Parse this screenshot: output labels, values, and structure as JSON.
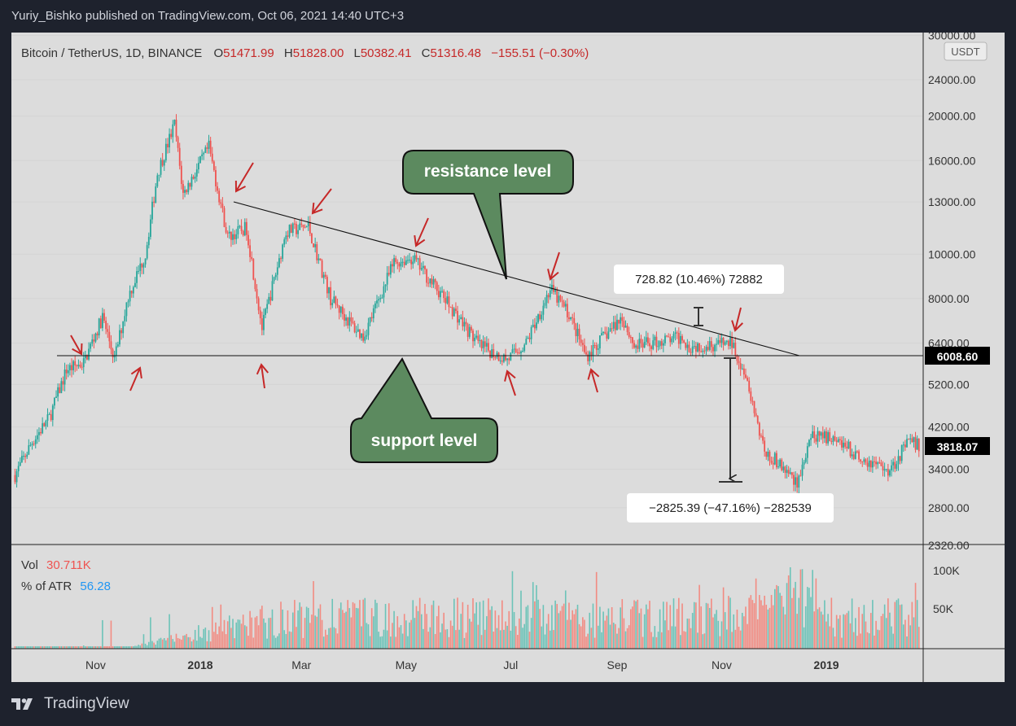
{
  "header": {
    "attribution": "Yuriy_Bishko published on TradingView.com, Oct 06, 2021 14:40 UTC+3"
  },
  "legend": {
    "symbol": "Bitcoin / TetherUS, 1D, BINANCE",
    "o_label": "O",
    "o_value": "51471.99",
    "h_label": "H",
    "h_value": "51828.00",
    "l_label": "L",
    "l_value": "50382.41",
    "c_label": "C",
    "c_value": "51316.48",
    "change": "−155.51 (−0.30%)"
  },
  "volume_legend": {
    "vol_label": "Vol",
    "vol_value": "30.711K",
    "atr_label": "% of ATR",
    "atr_value": "56.28"
  },
  "currency_badge": "USDT",
  "price_axis": {
    "ticks": [
      "30000.00",
      "24000.00",
      "20000.00",
      "16000.00",
      "13000.00",
      "10000.00",
      "8000.00",
      "6400.00",
      "5200.00",
      "4200.00",
      "3400.00",
      "2800.00",
      "2320.00"
    ]
  },
  "price_labels": {
    "support_price": "6008.60",
    "last_price": "3818.07"
  },
  "volume_axis": {
    "ticks": [
      "100K",
      "50K"
    ]
  },
  "time_axis": {
    "ticks": [
      "Nov",
      "2018",
      "Mar",
      "May",
      "Jul",
      "Sep",
      "Nov",
      "2019"
    ]
  },
  "annotations": {
    "resistance": "resistance level",
    "support": "support level",
    "measure_up": "728.82 (10.46%) 72882",
    "measure_down": "−2825.39 (−47.16%) −282539"
  },
  "colors": {
    "up": "#26a69a",
    "down": "#ef5350",
    "arrow": "#c62828",
    "callout_fill": "#5c8a5f",
    "chart_bg": "#dcdcdc",
    "frame_bg": "#1e222d"
  },
  "brand": {
    "name": "TradingView"
  },
  "chart_data": {
    "type": "candlestick",
    "symbol": "Bitcoin / TetherUS",
    "interval": "1D",
    "y_scale": "log",
    "ylim": [
      2320,
      30000
    ],
    "support_level": 6008.6,
    "last_close": 3818.07,
    "resistance_line": [
      {
        "x": "2018-01-06",
        "y": 13200
      },
      {
        "x": "2018-11-30",
        "y": 6008.6
      }
    ],
    "price_path": [
      {
        "x": "2017-09-15",
        "y": 3300
      },
      {
        "x": "2017-09-25",
        "y": 3900
      },
      {
        "x": "2017-10-05",
        "y": 4400
      },
      {
        "x": "2017-10-15",
        "y": 5600
      },
      {
        "x": "2017-10-25",
        "y": 5800
      },
      {
        "x": "2017-11-05",
        "y": 7300
      },
      {
        "x": "2017-11-12",
        "y": 5900
      },
      {
        "x": "2017-11-20",
        "y": 8100
      },
      {
        "x": "2017-11-30",
        "y": 10000
      },
      {
        "x": "2017-12-07",
        "y": 15000
      },
      {
        "x": "2017-12-17",
        "y": 19200
      },
      {
        "x": "2017-12-22",
        "y": 13500
      },
      {
        "x": "2018-01-06",
        "y": 17100
      },
      {
        "x": "2018-01-17",
        "y": 10900
      },
      {
        "x": "2018-01-28",
        "y": 11400
      },
      {
        "x": "2018-02-06",
        "y": 6900
      },
      {
        "x": "2018-02-20",
        "y": 11200
      },
      {
        "x": "2018-03-05",
        "y": 11500
      },
      {
        "x": "2018-03-18",
        "y": 8000
      },
      {
        "x": "2018-04-01",
        "y": 6900
      },
      {
        "x": "2018-04-06",
        "y": 6600
      },
      {
        "x": "2018-04-24",
        "y": 9600
      },
      {
        "x": "2018-05-05",
        "y": 9800
      },
      {
        "x": "2018-05-29",
        "y": 7500
      },
      {
        "x": "2018-06-13",
        "y": 6300
      },
      {
        "x": "2018-06-29",
        "y": 5900
      },
      {
        "x": "2018-07-10",
        "y": 6400
      },
      {
        "x": "2018-07-24",
        "y": 8400
      },
      {
        "x": "2018-08-04",
        "y": 7400
      },
      {
        "x": "2018-08-14",
        "y": 6000
      },
      {
        "x": "2018-09-04",
        "y": 7300
      },
      {
        "x": "2018-09-11",
        "y": 6300
      },
      {
        "x": "2018-10-10",
        "y": 6600
      },
      {
        "x": "2018-10-12",
        "y": 6300
      },
      {
        "x": "2018-11-07",
        "y": 6400
      },
      {
        "x": "2018-11-14",
        "y": 5600
      },
      {
        "x": "2018-11-20",
        "y": 4500
      },
      {
        "x": "2018-11-25",
        "y": 3800
      },
      {
        "x": "2018-12-07",
        "y": 3400
      },
      {
        "x": "2018-12-15",
        "y": 3200
      },
      {
        "x": "2018-12-24",
        "y": 4000
      },
      {
        "x": "2019-01-07",
        "y": 4000
      },
      {
        "x": "2019-01-20",
        "y": 3600
      },
      {
        "x": "2019-02-07",
        "y": 3400
      },
      {
        "x": "2019-02-18",
        "y": 3900
      },
      {
        "x": "2019-02-25",
        "y": 3818
      }
    ],
    "measurements": [
      {
        "label": "728.82 (10.46%) 72882",
        "change": 728.82,
        "change_pct": 10.46
      },
      {
        "label": "−2825.39 (−47.16%) −282539",
        "change": -2825.39,
        "change_pct": -47.16
      }
    ]
  }
}
